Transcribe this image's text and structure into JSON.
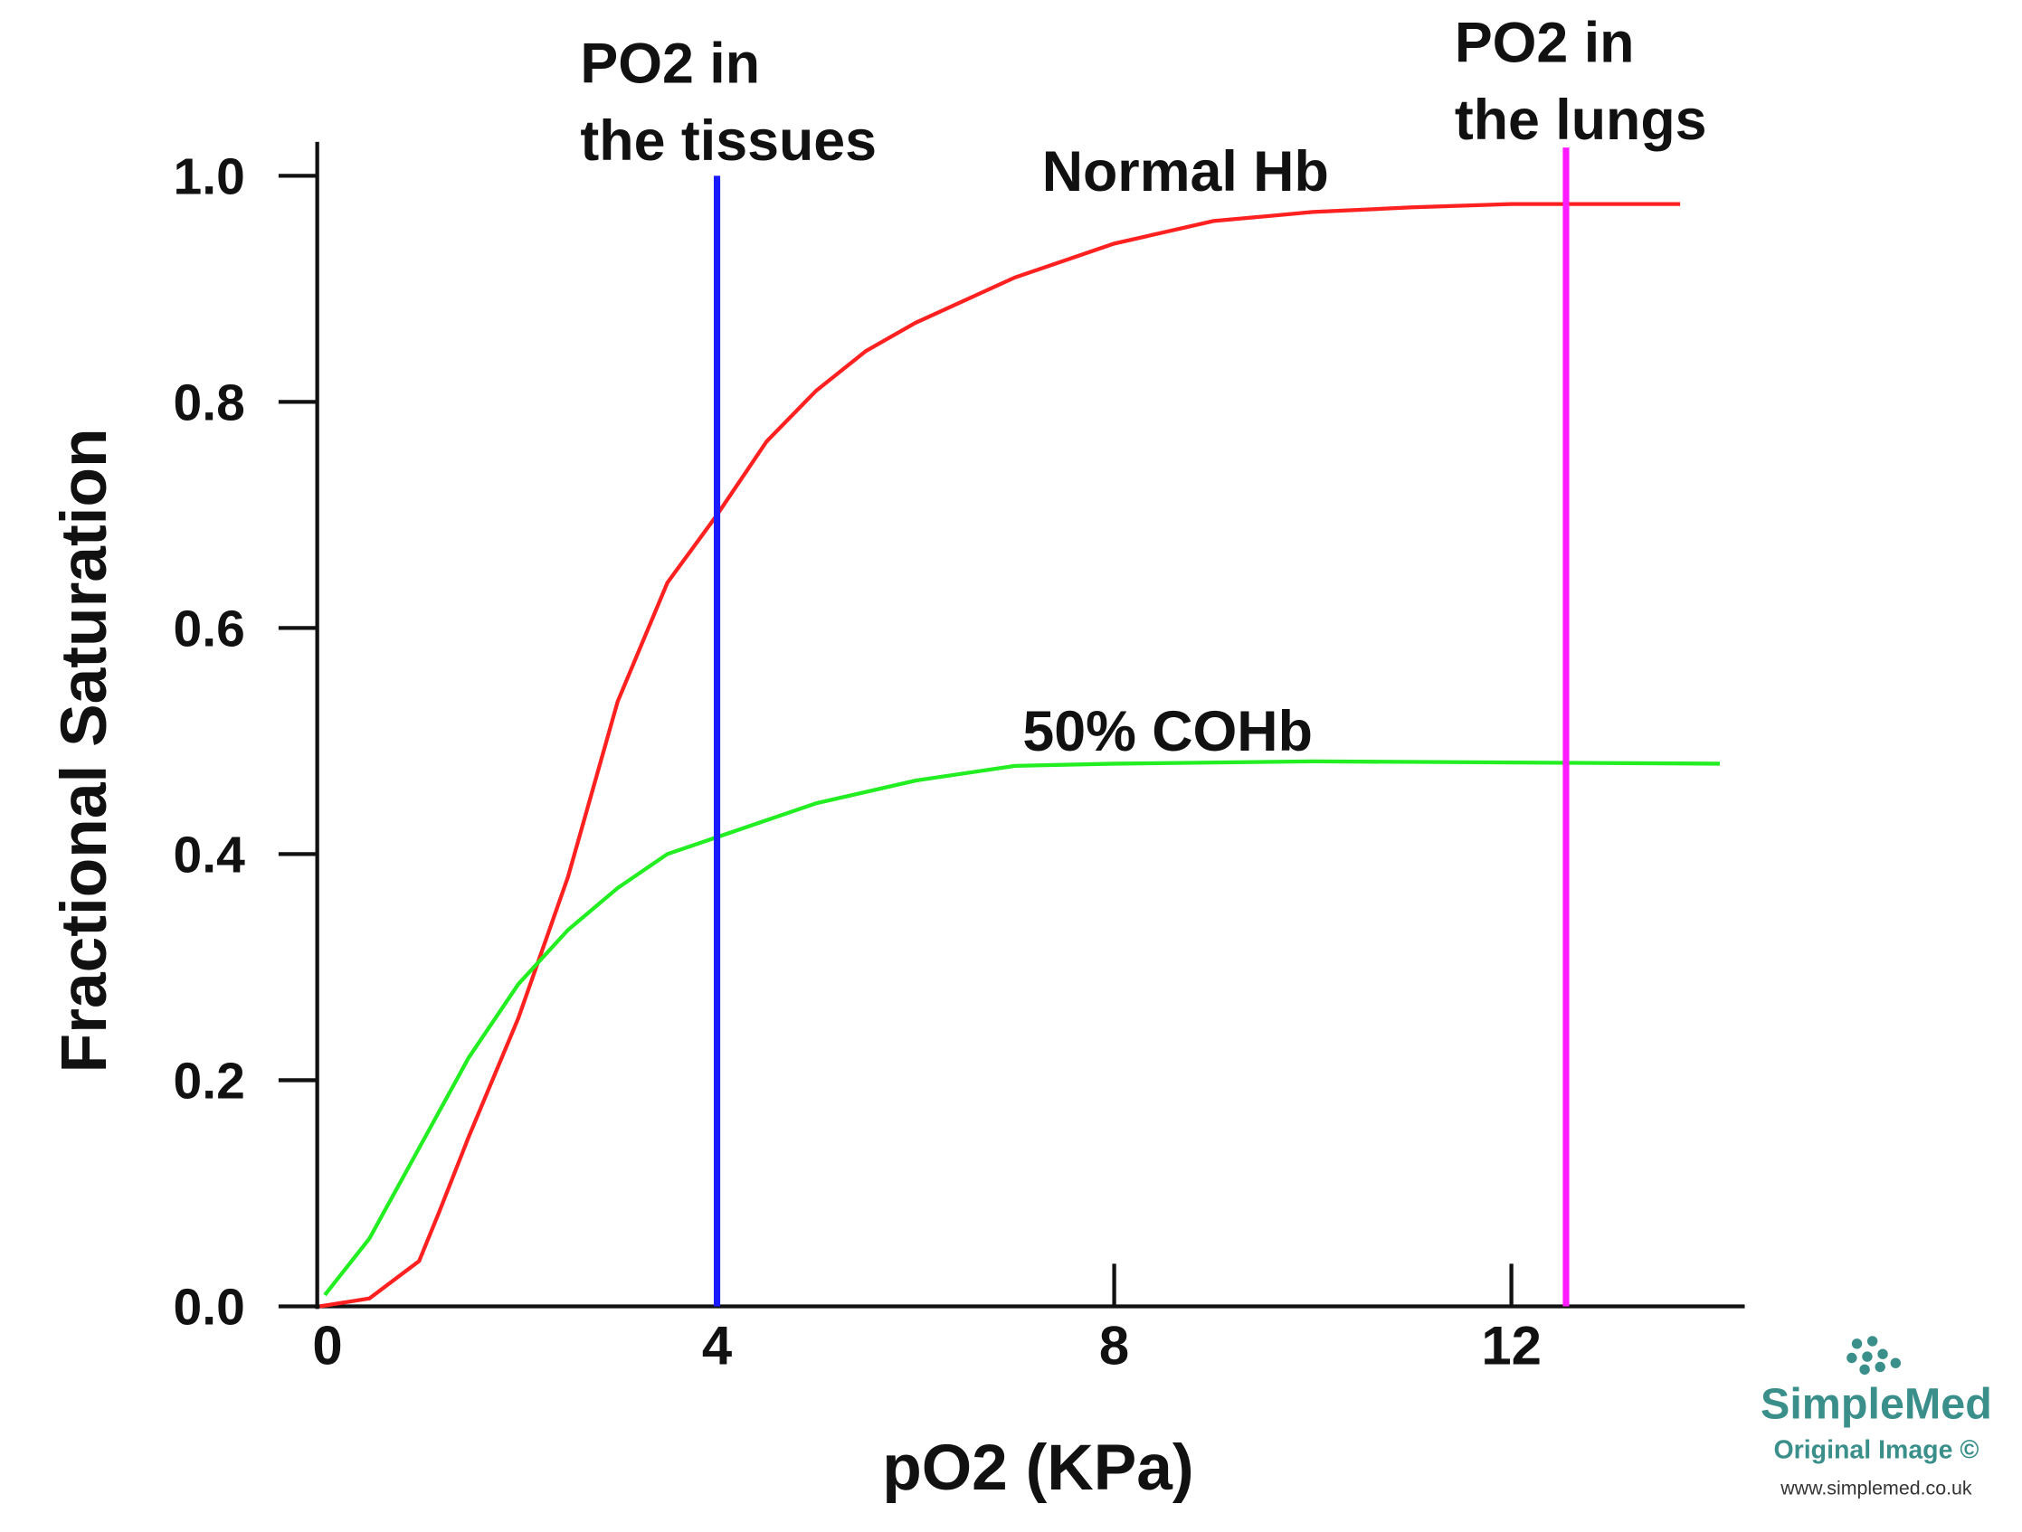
{
  "chart_data": {
    "type": "line",
    "x_label": "pO2 (KPa)",
    "y_label": "Fractional Saturation",
    "xlim": [
      0,
      14.35
    ],
    "ylim": [
      0,
      1.03
    ],
    "xticks": [
      0,
      4,
      8,
      12
    ],
    "yticks": [
      {
        "value": 0,
        "label": "0.0"
      },
      0.2,
      0.4,
      0.6,
      0.8,
      {
        "value": 1,
        "label": "1.0"
      }
    ],
    "series": [
      {
        "name": "Normal Hb",
        "color": "#ff2020",
        "x": [
          0,
          0.5,
          1,
          1.2,
          1.5,
          2,
          2.5,
          3,
          3.5,
          4,
          4.5,
          5,
          5.5,
          6,
          7,
          8,
          9,
          10,
          11,
          12,
          13.7
        ],
        "values": [
          0,
          0.007,
          0.04,
          0.083,
          0.15,
          0.255,
          0.38,
          0.535,
          0.64,
          0.7,
          0.765,
          0.81,
          0.845,
          0.87,
          0.91,
          0.94,
          0.96,
          0.968,
          0.972,
          0.975,
          0.975
        ]
      },
      {
        "name": "50% COHb",
        "color": "#22ee22",
        "x": [
          0.05,
          0.5,
          1,
          1.5,
          2,
          2.5,
          3,
          3.5,
          4,
          5,
          6,
          7,
          8,
          10,
          12,
          14.1
        ],
        "values": [
          0.01,
          0.06,
          0.14,
          0.22,
          0.285,
          0.333,
          0.37,
          0.4,
          0.415,
          0.445,
          0.465,
          0.478,
          0.48,
          0.482,
          0.481,
          0.48
        ]
      }
    ],
    "reference_lines": [
      {
        "label": [
          "PO2 in",
          "the tissues"
        ],
        "x": 4,
        "ymax": 1.0,
        "color": "#1a1aff"
      },
      {
        "label": [
          "PO2 in",
          "the lungs"
        ],
        "x": 12.55,
        "ymax": 1.025,
        "color": "#ff1aff"
      }
    ],
    "watermark": {
      "brand": "SimpleMed",
      "note": "Original Image ©",
      "url": "www.simplemed.co.uk"
    }
  }
}
